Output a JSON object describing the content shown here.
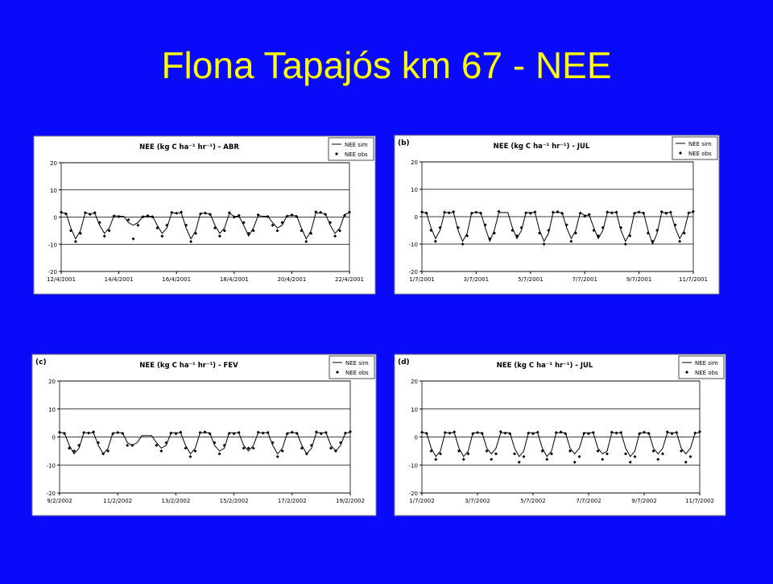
{
  "title": "Flona Tapajós km 67 - NEE",
  "chart_data": [
    {
      "type": "line",
      "title": "NEE (kg C ha⁻¹ hr⁻¹) - ABR",
      "legend": "upper right",
      "categories": [
        "12/4/2001",
        null,
        null,
        null,
        null,
        null,
        null,
        null,
        null,
        null,
        null,
        null,
        "14/4/2001",
        null,
        null,
        null,
        null,
        null,
        null,
        null,
        null,
        null,
        null,
        null,
        "16/4/2001",
        null,
        null,
        null,
        null,
        null,
        null,
        null,
        null,
        null,
        null,
        null,
        "18/4/2001",
        null,
        null,
        null,
        null,
        null,
        null,
        null,
        null,
        null,
        null,
        null,
        "20/4/2001",
        null,
        null,
        null,
        null,
        null,
        null,
        null,
        null,
        null,
        null,
        null,
        "22/4/2001"
      ],
      "ylim": [
        -20,
        20
      ],
      "yticks": [
        -20,
        -10,
        0,
        10,
        20
      ],
      "grid": true,
      "series": [
        {
          "name": "NEE sim",
          "color": "#000000",
          "values": [
            1.5,
            1.5,
            -4,
            -8,
            -5,
            1.5,
            1.2,
            1.4,
            -3,
            -6,
            -4,
            0.5,
            0.3,
            0.3,
            -2,
            -3,
            -2,
            0.2,
            0.2,
            0.3,
            -3,
            -6,
            -4,
            1.5,
            1.5,
            1.5,
            -4,
            -8,
            -5,
            1.5,
            1.3,
            1.2,
            -3,
            -6,
            -4,
            1.4,
            0.3,
            0.3,
            -3,
            -7,
            -4,
            0.5,
            0.3,
            0.3,
            -2,
            -4,
            -3,
            0.5,
            0.5,
            0.5,
            -4,
            -8,
            -5,
            1.5,
            1.5,
            1.2,
            -3,
            -6,
            -4,
            1,
            1.5
          ]
        },
        {
          "name": "NEE obs",
          "color": "#000000",
          "values": [
            1.8,
            1.2,
            -5,
            -9,
            -6,
            1.6,
            1.0,
            1.6,
            -2,
            -7,
            -5,
            0.4,
            0.2,
            null,
            -1,
            -8,
            -3,
            0.1,
            0.5,
            0.1,
            -4,
            -7,
            -3,
            1.7,
            1.4,
            1.8,
            -3,
            -9,
            -6,
            1.2,
            1.5,
            1.0,
            -4,
            -7,
            -5,
            1.6,
            0.0,
            0.6,
            -2,
            -6,
            -5,
            0.8,
            null,
            0.2,
            -3,
            -5,
            -2,
            0.3,
            0.8,
            0.2,
            -5,
            -9,
            -6,
            1.9,
            1.7,
            1.0,
            -2,
            -7,
            -5,
            0.6,
            1.8
          ]
        }
      ]
    },
    {
      "type": "line",
      "title": "NEE (kg C ha⁻¹ hr⁻¹) - JUL",
      "panel_label": "(b)",
      "legend": "upper right",
      "categories": [
        "1/7/2001",
        null,
        null,
        null,
        null,
        null,
        null,
        null,
        null,
        null,
        null,
        null,
        "3/7/2001",
        null,
        null,
        null,
        null,
        null,
        null,
        null,
        null,
        null,
        null,
        null,
        "5/7/2001",
        null,
        null,
        null,
        null,
        null,
        null,
        null,
        null,
        null,
        null,
        null,
        "7/7/2001",
        null,
        null,
        null,
        null,
        null,
        null,
        null,
        null,
        null,
        null,
        null,
        "9/7/2001",
        null,
        null,
        null,
        null,
        null,
        null,
        null,
        null,
        null,
        null,
        null,
        "11/7/2001"
      ],
      "ylim": [
        -20,
        20
      ],
      "yticks": [
        -20,
        -10,
        0,
        10,
        20
      ],
      "grid": true,
      "series": [
        {
          "name": "NEE sim",
          "color": "#000000",
          "values": [
            1.5,
            1.5,
            -4,
            -8,
            -5,
            1.5,
            1.5,
            1.5,
            -5,
            -9,
            -6,
            1.5,
            1.5,
            1.5,
            -4,
            -9,
            -5,
            1.5,
            1.5,
            1.5,
            -4,
            -8,
            -5,
            1.5,
            1.5,
            1.5,
            -5,
            -9,
            -6,
            1.5,
            1.5,
            1.5,
            -4,
            -8,
            -5,
            1.5,
            0.5,
            0.5,
            -4,
            -8,
            -5,
            1.5,
            1.5,
            1.5,
            -5,
            -9,
            -6,
            1.5,
            1.5,
            1.5,
            -5,
            -10,
            -6,
            1.5,
            1.5,
            1.5,
            -4,
            -8,
            -5,
            1.5,
            1.5
          ]
        },
        {
          "name": "NEE obs",
          "color": "#000000",
          "values": [
            1.7,
            1.3,
            -5,
            -9,
            -4,
            1.6,
            1.4,
            1.8,
            -4,
            -10,
            -7,
            1.2,
            1.6,
            1.3,
            -3,
            -8,
            -6,
            1.9,
            null,
            null,
            -5,
            -7,
            -4,
            1.4,
            1.2,
            1.7,
            -6,
            -10,
            -5,
            1.6,
            1.8,
            1.2,
            -3,
            -9,
            -6,
            1.3,
            0.2,
            0.8,
            -5,
            -7,
            -4,
            1.7,
            1.4,
            1.6,
            -4,
            -10,
            -7,
            1.2,
            1.7,
            1.3,
            -6,
            -9,
            -5,
            1.8,
            1.2,
            1.6,
            -3,
            -9,
            -6,
            1.4,
            1.9
          ]
        }
      ]
    },
    {
      "type": "line",
      "title": "NEE (kg C ha⁻¹ hr⁻¹) - FEV",
      "panel_label": "(c)",
      "legend": "upper right",
      "categories": [
        "9/2/2002",
        null,
        null,
        null,
        null,
        null,
        null,
        null,
        null,
        null,
        null,
        null,
        "11/2/2002",
        null,
        null,
        null,
        null,
        null,
        null,
        null,
        null,
        null,
        null,
        null,
        "13/2/2002",
        null,
        null,
        null,
        null,
        null,
        null,
        null,
        null,
        null,
        null,
        null,
        "15/2/2002",
        null,
        null,
        null,
        null,
        null,
        null,
        null,
        null,
        null,
        null,
        null,
        "17/2/2002",
        null,
        null,
        null,
        null,
        null,
        null,
        null,
        null,
        null,
        null,
        null,
        "19/2/2002"
      ],
      "ylim": [
        -20,
        20
      ],
      "yticks": [
        -20,
        -10,
        0,
        10,
        20
      ],
      "grid": true,
      "series": [
        {
          "name": "NEE sim",
          "color": "#000000",
          "values": [
            1.5,
            1.5,
            -3,
            -6,
            -4,
            1.5,
            1.5,
            1.5,
            -3,
            -6,
            -4,
            1.5,
            1.5,
            1.5,
            -2,
            -3,
            -2,
            0.5,
            0.5,
            0.5,
            -2,
            -4,
            -3,
            1.5,
            1.5,
            1.5,
            -3,
            -6,
            -4,
            1.5,
            1.5,
            1.5,
            -3,
            -5,
            -4,
            1.5,
            1.5,
            1.5,
            -3,
            -5,
            -3,
            1.5,
            1.5,
            1.5,
            -3,
            -6,
            -4,
            1.5,
            1.5,
            1.5,
            -3,
            -6,
            -4,
            1.5,
            1.5,
            1.5,
            -3,
            -5,
            -3,
            1.5,
            1.5
          ]
        },
        {
          "name": "NEE obs",
          "color": "#000000",
          "values": [
            1.7,
            1.3,
            -4,
            -5,
            -3,
            1.6,
            1.4,
            1.8,
            -2,
            -6,
            -5,
            1.2,
            1.6,
            1.3,
            -3,
            -3,
            null,
            null,
            null,
            null,
            -3,
            -5,
            -2,
            1.4,
            1.2,
            1.7,
            -4,
            -7,
            -5,
            1.6,
            1.8,
            1.2,
            -2,
            -6,
            -3,
            1.3,
            1.2,
            1.6,
            -4,
            -4,
            -4,
            1.7,
            1.4,
            1.6,
            -2,
            -7,
            -5,
            1.2,
            1.7,
            1.3,
            -4,
            -6,
            -3,
            1.8,
            1.2,
            1.6,
            -4,
            -5,
            -2,
            1.4,
            1.9
          ]
        }
      ]
    },
    {
      "type": "line",
      "title": "NEE (kg C ha⁻¹ hr⁻¹) - JUL",
      "panel_label": "(d)",
      "legend": "upper right",
      "categories": [
        "1/7/2002",
        null,
        null,
        null,
        null,
        null,
        null,
        null,
        null,
        null,
        null,
        null,
        "3/7/2002",
        null,
        null,
        null,
        null,
        null,
        null,
        null,
        null,
        null,
        null,
        null,
        "5/7/2002",
        null,
        null,
        null,
        null,
        null,
        null,
        null,
        null,
        null,
        null,
        null,
        "7/7/2002",
        null,
        null,
        null,
        null,
        null,
        null,
        null,
        null,
        null,
        null,
        null,
        "9/7/2002",
        null,
        null,
        null,
        null,
        null,
        null,
        null,
        null,
        null,
        null,
        null,
        "11/7/2002"
      ],
      "ylim": [
        -20,
        20
      ],
      "yticks": [
        -20,
        -10,
        0,
        10,
        20
      ],
      "grid": true,
      "series": [
        {
          "name": "NEE sim",
          "color": "#000000",
          "values": [
            1.5,
            1.5,
            -4,
            -7,
            -5,
            1.5,
            1.5,
            1.5,
            -4,
            -7,
            -5,
            1.5,
            1.5,
            1.5,
            -4,
            -6,
            -4,
            1.5,
            1.5,
            1.5,
            -4,
            -7,
            -5,
            1.5,
            1.5,
            1.5,
            -4,
            -7,
            -5,
            1.5,
            1.5,
            1.5,
            -4,
            -6,
            -4,
            1.5,
            1.5,
            1.5,
            -4,
            -6,
            -5,
            1.5,
            1.5,
            1.5,
            -4,
            -7,
            -5,
            1.5,
            1.5,
            1.5,
            -4,
            -6,
            -4,
            1.5,
            1.5,
            1.5,
            -4,
            -6,
            -4,
            1.5,
            1.5
          ]
        },
        {
          "name": "NEE obs",
          "color": "#000000",
          "values": [
            1.7,
            1.3,
            -5,
            -8,
            -6,
            1.6,
            1.4,
            1.8,
            -5,
            -8,
            -6,
            1.2,
            1.6,
            1.3,
            -5,
            -8,
            -6,
            1.9,
            1.4,
            1.2,
            -6,
            -9,
            -7,
            1.4,
            1.2,
            1.7,
            -5,
            -8,
            -6,
            1.6,
            1.8,
            1.2,
            -5,
            -9,
            -7,
            1.3,
            1.2,
            1.6,
            -5,
            -8,
            -6,
            1.7,
            1.4,
            1.6,
            -6,
            -9,
            -7,
            1.2,
            1.7,
            1.3,
            -5,
            -8,
            -6,
            1.8,
            1.2,
            1.6,
            -5,
            -9,
            -7,
            1.4,
            1.9
          ]
        }
      ]
    }
  ]
}
